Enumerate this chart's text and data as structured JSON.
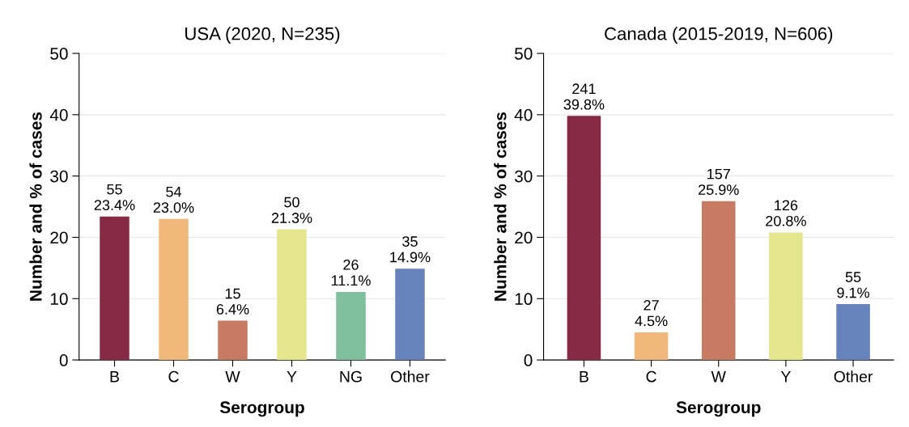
{
  "chart_data": [
    {
      "type": "bar",
      "title": "USA (2020, N=235)",
      "xlabel": "Serogroup",
      "ylabel": "Number and % of cases",
      "categories": [
        "B",
        "C",
        "W",
        "Y",
        "NG",
        "Other"
      ],
      "values": [
        23.4,
        23.0,
        6.4,
        21.3,
        11.1,
        14.9
      ],
      "colors": [
        "#862a45",
        "#f0b87a",
        "#c67b62",
        "#e3e68d",
        "#7fbf9c",
        "#6783bb"
      ],
      "value_labels": [
        "55\n23.4%",
        "54\n23.0%",
        "15\n6.4%",
        "50\n21.3%",
        "26\n11.1%",
        "35\n14.9%"
      ],
      "ylim": [
        0,
        50
      ],
      "yticks": [
        0,
        10,
        20,
        30,
        40,
        50
      ],
      "grid": "y"
    },
    {
      "type": "bar",
      "title": "Canada (2015-2019, N=606)",
      "xlabel": "Serogroup",
      "ylabel": "Number and % of cases",
      "categories": [
        "B",
        "C",
        "W",
        "Y",
        "Other"
      ],
      "values": [
        39.8,
        4.5,
        25.9,
        20.8,
        9.1
      ],
      "colors": [
        "#862a45",
        "#f0b87a",
        "#c67b62",
        "#e3e68d",
        "#6783bb"
      ],
      "value_labels": [
        "241\n39.8%",
        "27\n4.5%",
        "157\n25.9%",
        "126\n20.8%",
        "55\n9.1%"
      ],
      "ylim": [
        0,
        50
      ],
      "yticks": [
        0,
        10,
        20,
        30,
        40,
        50
      ],
      "grid": "y"
    }
  ]
}
